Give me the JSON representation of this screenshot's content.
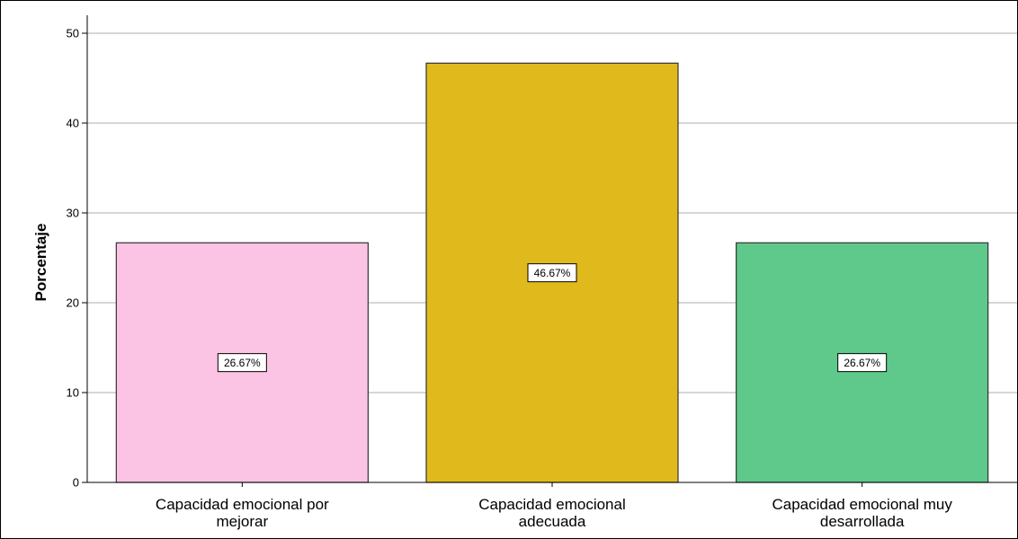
{
  "chart_data": {
    "type": "bar",
    "title": "",
    "xlabel": "",
    "ylabel": "Porcentaje",
    "ylim": [
      0,
      52
    ],
    "yticks": [
      0,
      10,
      20,
      30,
      40,
      50
    ],
    "grid": true,
    "categories": [
      [
        "Capacidad emocional por",
        "mejorar"
      ],
      [
        "Capacidad emocional",
        "adecuada"
      ],
      [
        "Capacidad emocional muy",
        "desarrollada"
      ]
    ],
    "values": [
      26.67,
      46.67,
      26.67
    ],
    "data_labels": [
      "26.67%",
      "46.67%",
      "26.67%"
    ],
    "colors": [
      "#fcc4e4",
      "#e0ba1c",
      "#5ec98a"
    ]
  }
}
